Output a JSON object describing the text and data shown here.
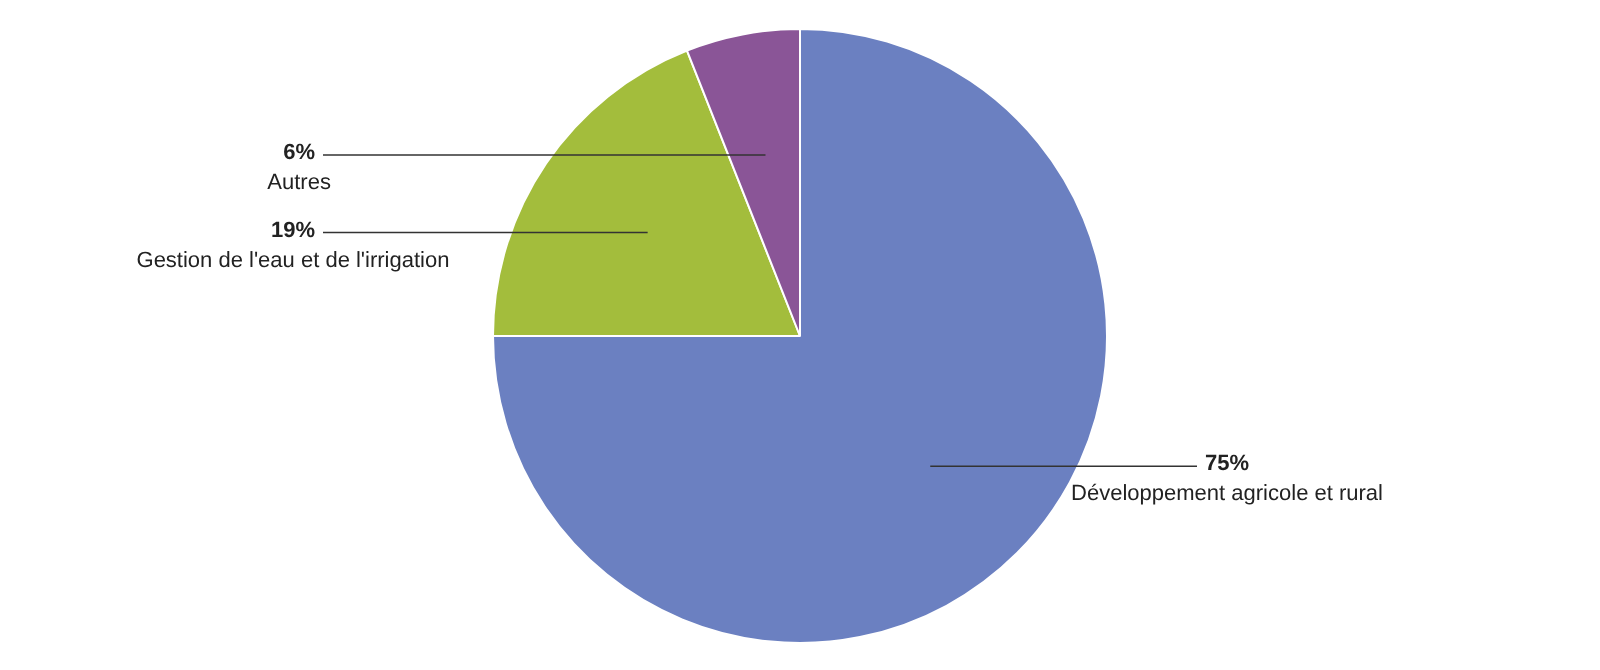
{
  "chart_data": {
    "type": "pie",
    "categories": [
      "Développement agricole et rural",
      "Gestion de l'eau et de l'irrigation",
      "Autres"
    ],
    "values": [
      75,
      19,
      6
    ],
    "colors": [
      "#6b80c1",
      "#a3bd3c",
      "#8a5597"
    ],
    "value_labels": [
      "75%",
      "19%",
      "6%"
    ],
    "legend": false
  }
}
